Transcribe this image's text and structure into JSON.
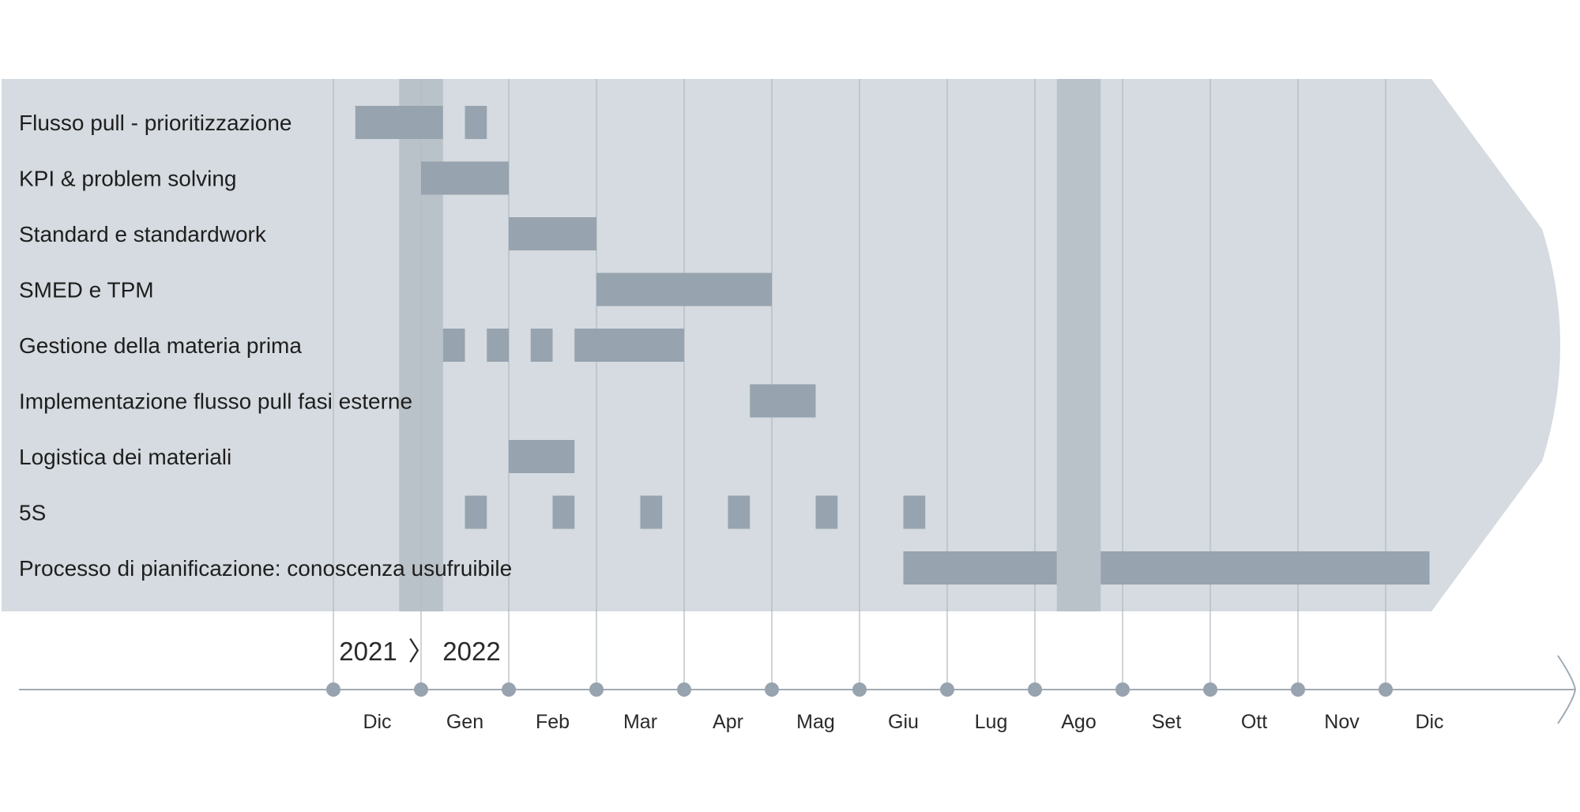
{
  "chart_data": {
    "type": "gantt",
    "x_unit": "months (0 = Dic 2021 start, 1 = Gen 2022 start)",
    "years": [
      "2021",
      "2022"
    ],
    "year_separator": "〉",
    "months": [
      "Dic",
      "Gen",
      "Feb",
      "Mar",
      "Apr",
      "Mag",
      "Giu",
      "Lug",
      "Ago",
      "Set",
      "Ott",
      "Nov",
      "Dic"
    ],
    "highlight_periods": [
      {
        "start": 0.75,
        "end": 1.25
      },
      {
        "start": 8.25,
        "end": 8.75
      }
    ],
    "tasks": [
      {
        "label": "Flusso pull - prioritizzazione",
        "segments": [
          [
            0.25,
            1.25
          ],
          [
            1.5,
            1.75
          ]
        ]
      },
      {
        "label": "KPI & problem solving",
        "segments": [
          [
            1.0,
            2.0
          ]
        ]
      },
      {
        "label": "Standard e standardwork",
        "segments": [
          [
            2.0,
            3.0
          ]
        ]
      },
      {
        "label": "SMED e TPM",
        "segments": [
          [
            3.0,
            5.0
          ]
        ]
      },
      {
        "label": "Gestione della materia prima",
        "segments": [
          [
            1.25,
            1.5
          ],
          [
            1.75,
            2.0
          ],
          [
            2.25,
            2.5
          ],
          [
            2.75,
            4.0
          ]
        ]
      },
      {
        "label": "Implementazione flusso pull fasi esterne",
        "segments": [
          [
            4.75,
            5.5
          ]
        ]
      },
      {
        "label": "Logistica dei materiali",
        "segments": [
          [
            2.0,
            2.75
          ]
        ]
      },
      {
        "label": "5S",
        "segments": [
          [
            1.5,
            1.75
          ],
          [
            2.5,
            2.75
          ],
          [
            3.5,
            3.75
          ],
          [
            4.5,
            4.75
          ],
          [
            5.5,
            5.75
          ],
          [
            6.5,
            6.75
          ]
        ]
      },
      {
        "label": "Processo di pianificazione: conoscenza usufruibile",
        "segments": [
          [
            6.5,
            8.25
          ],
          [
            8.75,
            12.5
          ]
        ]
      }
    ]
  },
  "colors": {
    "band": "#d5dbe0",
    "highlight": "#bac2c9",
    "bar": "#97a3ae",
    "gridline": "#b3bcc4",
    "axis": "#a0aab3",
    "dot": "#97a3ae"
  }
}
